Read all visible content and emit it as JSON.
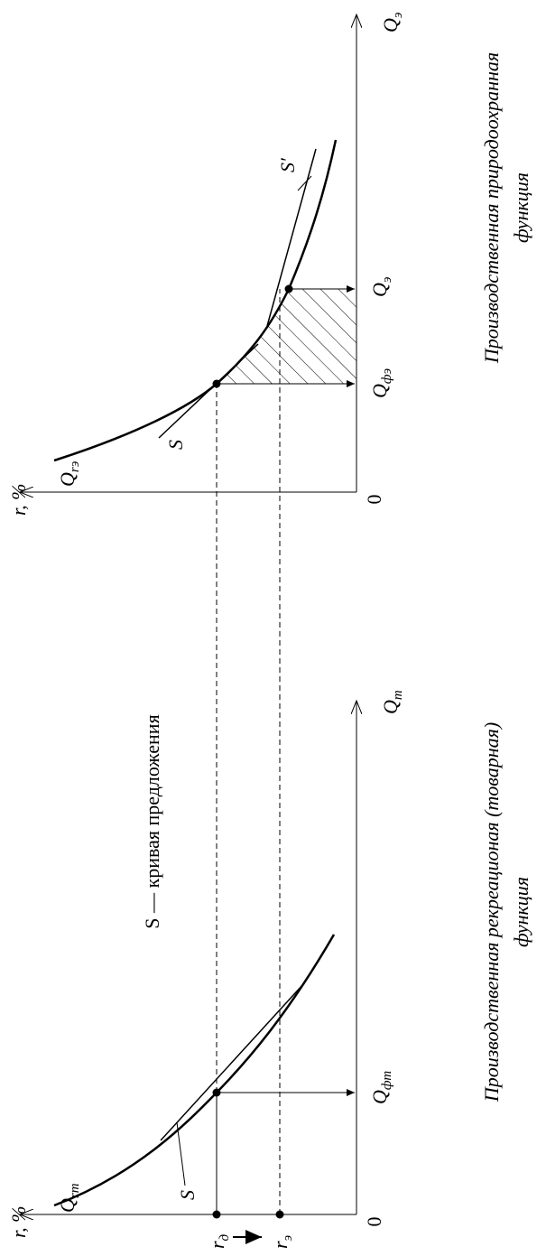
{
  "caption": "S — кривая предложения",
  "left_panel": {
    "y_axis_label": "r, %",
    "origin": "0",
    "x_axis_label": {
      "symbol": "Q",
      "sub": "т"
    },
    "curve_label": {
      "symbol": "Q",
      "sub": "rm"
    },
    "tangent_label": "S",
    "point_label": {
      "symbol": "Q",
      "sub": "фт"
    },
    "rate_d": {
      "symbol": "r",
      "sub": "д"
    },
    "rate_e": {
      "symbol": "r",
      "sub": "э"
    },
    "title": [
      "Производственная рекреационая (товарная)",
      "функция"
    ]
  },
  "right_panel": {
    "y_axis_label": "r, %",
    "origin": "0",
    "x_axis_label": {
      "symbol": "Q",
      "sub": "э"
    },
    "curve_label": {
      "symbol": "Q",
      "sub": "rэ"
    },
    "tangent_label": "S",
    "tangent2_label": "S′",
    "point1_label": {
      "symbol": "Q",
      "sub": "фэ"
    },
    "point2_label": {
      "symbol": "Q",
      "sub": "э"
    },
    "title": [
      "Производственная природоохранная",
      "функция"
    ]
  }
}
